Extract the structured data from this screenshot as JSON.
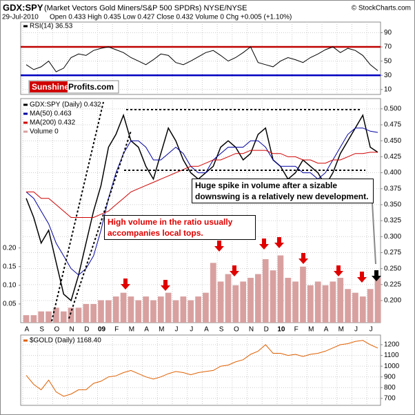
{
  "header": {
    "title": "GDX:SPY",
    "subtitle": "(Market Vectors Gold Miners/S&P 500 SPDRs) NYSE/NYSE",
    "date": "29-Jul-2010",
    "quote": "Open 0.433 High 0.435 Low 0.427 Close 0.432 Volume 0 Chg +0.005 (+1.10%)",
    "credit": "© StockCharts.com"
  },
  "logo": {
    "left": "Sunshine",
    "right": "Profits.com"
  },
  "chart_data": [
    {
      "type": "line",
      "series": [
        {
          "name": "RSI(14) 36.53",
          "color": "#000000",
          "values": [
            45,
            38,
            42,
            50,
            35,
            40,
            55,
            60,
            58,
            65,
            68,
            70,
            66,
            62,
            55,
            50,
            45,
            52,
            60,
            58,
            48,
            45,
            50,
            56,
            62,
            65,
            58,
            50,
            55,
            62,
            70,
            48,
            45,
            42,
            50,
            55,
            52,
            48,
            55,
            60,
            66,
            70,
            62,
            68,
            65,
            58,
            45,
            36.53
          ]
        }
      ],
      "levels": [
        {
          "value": 70,
          "color": "#c00000"
        },
        {
          "value": 30,
          "color": "#0000c0"
        }
      ],
      "ylim": [
        3,
        105
      ],
      "yticks": [
        10,
        30,
        50,
        70,
        90
      ]
    },
    {
      "type": "line",
      "categories": [
        "A",
        null,
        "S",
        null,
        "O",
        null,
        "N",
        null,
        "D",
        null,
        "09",
        null,
        "F",
        null,
        "M",
        null,
        "A",
        null,
        "M",
        null,
        "J",
        null,
        "J",
        null,
        "A",
        null,
        "S",
        null,
        "O",
        null,
        "N",
        null,
        "D",
        null,
        "10",
        null,
        "F",
        null,
        "M",
        null,
        "A",
        null,
        "M",
        null,
        "J",
        null,
        "J",
        null
      ],
      "series": [
        {
          "name": "GDX:SPY (Daily) 0.432",
          "color": "#000000",
          "values": [
            0.36,
            0.33,
            0.29,
            0.31,
            0.26,
            0.21,
            0.2,
            0.24,
            0.29,
            0.34,
            0.38,
            0.44,
            0.46,
            0.49,
            0.45,
            0.44,
            0.41,
            0.39,
            0.43,
            0.47,
            0.45,
            0.42,
            0.4,
            0.39,
            0.4,
            0.41,
            0.44,
            0.45,
            0.44,
            0.42,
            0.43,
            0.46,
            0.47,
            0.42,
            0.41,
            0.39,
            0.4,
            0.42,
            0.41,
            0.4,
            0.38,
            0.4,
            0.43,
            0.45,
            0.47,
            0.49,
            0.44,
            0.432
          ]
        },
        {
          "name": "MA(50) 0.463",
          "color": "#0000a0",
          "values": [
            0.37,
            0.36,
            0.34,
            0.32,
            0.29,
            0.27,
            0.25,
            0.24,
            0.25,
            0.27,
            0.31,
            0.36,
            0.4,
            0.43,
            0.45,
            0.45,
            0.44,
            0.42,
            0.42,
            0.43,
            0.44,
            0.43,
            0.41,
            0.4,
            0.4,
            0.42,
            0.43,
            0.44,
            0.44,
            0.44,
            0.45,
            0.45,
            0.44,
            0.42,
            0.41,
            0.41,
            0.41,
            0.4,
            0.4,
            0.39,
            0.4,
            0.42,
            0.44,
            0.46,
            0.47,
            0.47,
            0.465,
            0.463
          ]
        },
        {
          "name": "MA(200) 0.432",
          "color": "#d00000",
          "values": [
            0.37,
            0.37,
            0.36,
            0.36,
            0.35,
            0.34,
            0.33,
            0.33,
            0.33,
            0.33,
            0.335,
            0.34,
            0.35,
            0.36,
            0.37,
            0.375,
            0.38,
            0.385,
            0.39,
            0.395,
            0.4,
            0.405,
            0.41,
            0.41,
            0.415,
            0.42,
            0.42,
            0.425,
            0.43,
            0.43,
            0.435,
            0.435,
            0.435,
            0.43,
            0.43,
            0.425,
            0.425,
            0.42,
            0.42,
            0.415,
            0.415,
            0.42,
            0.42,
            0.425,
            0.43,
            0.43,
            0.432,
            0.432
          ]
        }
      ],
      "ylim": [
        0.1655,
        0.516
      ],
      "yticks": [
        {
          "value": 0.2,
          "label": "0.200"
        },
        {
          "value": 0.225,
          "label": "0.225"
        },
        {
          "value": 0.25,
          "label": "0.250"
        },
        {
          "value": 0.275,
          "label": "0.275"
        },
        {
          "value": 0.3,
          "label": "0.300"
        },
        {
          "value": 0.325,
          "label": "0.325"
        },
        {
          "value": 0.35,
          "label": "0.350"
        },
        {
          "value": 0.375,
          "label": "0.375"
        },
        {
          "value": 0.4,
          "label": "0.400"
        },
        {
          "value": 0.425,
          "label": "0.425"
        },
        {
          "value": 0.45,
          "label": "0.450"
        },
        {
          "value": 0.475,
          "label": "0.475"
        },
        {
          "value": 0.5,
          "label": "0.500"
        }
      ],
      "annotations": [
        "Huge spike in volume after a sizable downswing is a relatively new development.",
        "High volume in the ratio usually accompanies local tops."
      ]
    },
    {
      "type": "bar",
      "series": [
        {
          "name": "Volume 0",
          "color": "#d9a0a0",
          "values": [
            0.02,
            0.02,
            0.03,
            0.03,
            0.04,
            0.03,
            0.04,
            0.04,
            0.05,
            0.05,
            0.06,
            0.06,
            0.07,
            0.08,
            0.07,
            0.06,
            0.07,
            0.06,
            0.07,
            0.08,
            0.06,
            0.07,
            0.06,
            0.07,
            0.08,
            0.16,
            0.11,
            0.13,
            0.1,
            0.11,
            0.12,
            0.13,
            0.17,
            0.14,
            0.18,
            0.12,
            0.11,
            0.15,
            0.1,
            0.11,
            0.1,
            0.11,
            0.12,
            0.09,
            0.08,
            0.07,
            0.09,
            0.12
          ]
        }
      ],
      "ylim": [
        0,
        0.6
      ],
      "yticks": [
        0.05,
        {
          "value": 0.1,
          "label": "0.10"
        },
        0.15,
        {
          "value": 0.2,
          "label": "0.20"
        }
      ]
    },
    {
      "type": "line",
      "series": [
        {
          "name": "$GOLD (Daily) 1168.40",
          "color": "#e06000",
          "values": [
            915,
            830,
            780,
            870,
            760,
            720,
            740,
            780,
            780,
            840,
            860,
            900,
            910,
            940,
            960,
            930,
            900,
            880,
            900,
            930,
            950,
            940,
            920,
            940,
            950,
            960,
            1000,
            1010,
            1040,
            1060,
            1110,
            1140,
            1200,
            1120,
            1120,
            1100,
            1110,
            1090,
            1110,
            1120,
            1140,
            1170,
            1200,
            1210,
            1230,
            1240,
            1200,
            1168.4
          ]
        }
      ],
      "ylim": [
        635,
        1290
      ],
      "yticks": [
        700,
        800,
        900,
        1000,
        1100,
        1200
      ]
    }
  ]
}
